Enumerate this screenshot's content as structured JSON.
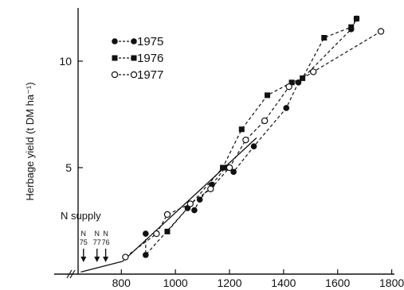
{
  "chart_data": {
    "type": "scatter",
    "ylabel": "Herbage yield (t DM ha⁻¹)",
    "x_ticks": [
      "800",
      "1000",
      "1200",
      "1400",
      "1600",
      "1800"
    ],
    "y_ticks": [
      "5",
      "10"
    ],
    "xlim": [
      640,
      1810
    ],
    "ylim": [
      0,
      12.5
    ],
    "legend_position": "top-left",
    "series": [
      {
        "name": "1975",
        "marker": "filled-circle",
        "points": [
          [
            890,
            1.9
          ],
          [
            890,
            0.9
          ],
          [
            1045,
            3.1
          ],
          [
            1070,
            3.0
          ],
          [
            1090,
            3.5
          ],
          [
            1135,
            4.2
          ],
          [
            1185,
            5.0
          ],
          [
            1215,
            4.8
          ],
          [
            1290,
            6.0
          ],
          [
            1410,
            7.8
          ],
          [
            1455,
            9.0
          ],
          [
            1650,
            11.5
          ],
          [
            1670,
            12.0
          ]
        ]
      },
      {
        "name": "1976",
        "marker": "filled-square",
        "points": [
          [
            970,
            2.0
          ],
          [
            1175,
            5.0
          ],
          [
            1245,
            6.8
          ],
          [
            1340,
            8.4
          ],
          [
            1430,
            9.0
          ],
          [
            1470,
            9.2
          ],
          [
            1550,
            11.1
          ],
          [
            1650,
            11.6
          ],
          [
            1670,
            12.0
          ]
        ]
      },
      {
        "name": "1977",
        "marker": "open-circle",
        "points": [
          [
            815,
            0.8
          ],
          [
            930,
            1.9
          ],
          [
            970,
            2.8
          ],
          [
            1055,
            3.3
          ],
          [
            1130,
            4.0
          ],
          [
            1200,
            5.0
          ],
          [
            1260,
            6.3
          ],
          [
            1330,
            7.2
          ],
          [
            1420,
            8.8
          ],
          [
            1510,
            9.5
          ],
          [
            1760,
            11.4
          ]
        ]
      }
    ],
    "fitted_line": {
      "style": "solid",
      "segments": [
        [
          [
            650,
            0.1
          ],
          [
            805,
            0.6
          ]
        ],
        [
          [
            805,
            0.6
          ],
          [
            1300,
            6.4
          ]
        ]
      ]
    },
    "annotation": {
      "title": "N supply",
      "markers": [
        {
          "label_top": "N",
          "label_bottom": "75",
          "x": 660
        },
        {
          "label_top": "N",
          "label_bottom": "77",
          "x": 710
        },
        {
          "label_top": "N",
          "label_bottom": "76",
          "x": 742
        }
      ]
    }
  }
}
